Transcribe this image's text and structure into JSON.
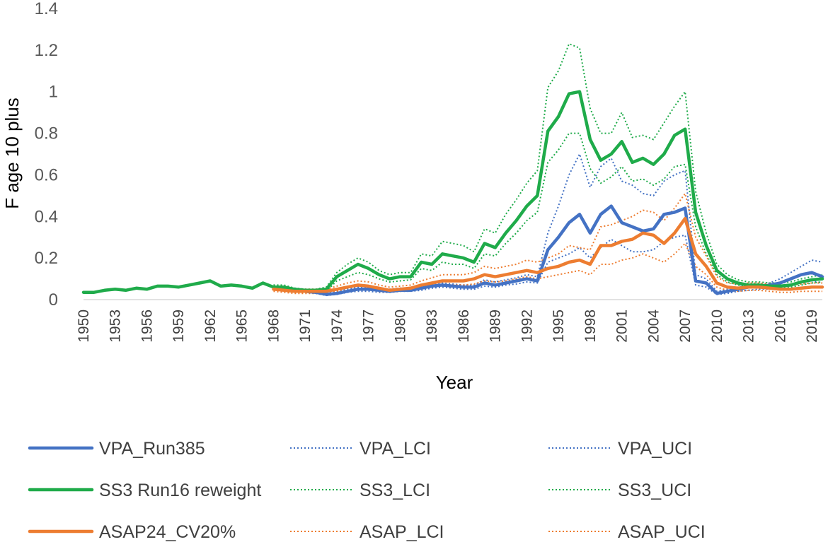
{
  "chart_data": {
    "type": "line",
    "xlabel": "Year",
    "ylabel": "F age 10 plus",
    "ylim": [
      0,
      1.4
    ],
    "yticks": [
      "0",
      "0.2",
      "0.4",
      "0.6",
      "0.8",
      "1",
      "1.2",
      "1.4"
    ],
    "xlim": [
      1950,
      2020
    ],
    "xticks": [
      "1950",
      "1953",
      "1956",
      "1959",
      "1962",
      "1965",
      "1968",
      "1971",
      "1974",
      "1977",
      "1980",
      "1983",
      "1986",
      "1989",
      "1992",
      "1995",
      "1998",
      "2001",
      "2004",
      "2007",
      "2010",
      "2013",
      "2016",
      "2019"
    ],
    "grid": false,
    "legend_position": "bottom",
    "series": [
      {
        "name": "VPA_Run385",
        "color": "#4472C4",
        "style": "solid",
        "x": [
          1968,
          1969,
          1970,
          1971,
          1972,
          1973,
          1974,
          1975,
          1976,
          1977,
          1978,
          1979,
          1980,
          1981,
          1982,
          1983,
          1984,
          1985,
          1986,
          1987,
          1988,
          1989,
          1990,
          1991,
          1992,
          1993,
          1994,
          1995,
          1996,
          1997,
          1998,
          1999,
          2000,
          2001,
          2002,
          2003,
          2004,
          2005,
          2006,
          2007,
          2008,
          2009,
          2010,
          2011,
          2012,
          2013,
          2014,
          2015,
          2016,
          2017,
          2018,
          2019,
          2020
        ],
        "values": [
          0.06,
          0.055,
          0.045,
          0.04,
          0.035,
          0.025,
          0.03,
          0.04,
          0.05,
          0.05,
          0.045,
          0.04,
          0.045,
          0.045,
          0.055,
          0.065,
          0.07,
          0.065,
          0.06,
          0.06,
          0.08,
          0.07,
          0.08,
          0.09,
          0.1,
          0.09,
          0.24,
          0.3,
          0.37,
          0.41,
          0.32,
          0.41,
          0.45,
          0.37,
          0.35,
          0.33,
          0.34,
          0.41,
          0.42,
          0.44,
          0.09,
          0.08,
          0.03,
          0.04,
          0.05,
          0.06,
          0.06,
          0.07,
          0.08,
          0.1,
          0.12,
          0.13,
          0.11
        ]
      },
      {
        "name": "VPA_LCI",
        "color": "#4472C4",
        "style": "dotted",
        "x": [
          1968,
          1969,
          1970,
          1971,
          1972,
          1973,
          1974,
          1975,
          1976,
          1977,
          1978,
          1979,
          1980,
          1981,
          1982,
          1983,
          1984,
          1985,
          1986,
          1987,
          1988,
          1989,
          1990,
          1991,
          1992,
          1993,
          1994,
          1995,
          1996,
          1997,
          1998,
          1999,
          2000,
          2001,
          2002,
          2003,
          2004,
          2005,
          2006,
          2007,
          2008,
          2009,
          2010,
          2011,
          2012,
          2013,
          2014,
          2015,
          2016,
          2017,
          2018,
          2019,
          2020
        ],
        "values": [
          0.05,
          0.045,
          0.04,
          0.035,
          0.03,
          0.02,
          0.025,
          0.035,
          0.04,
          0.04,
          0.035,
          0.035,
          0.04,
          0.04,
          0.045,
          0.055,
          0.06,
          0.055,
          0.05,
          0.05,
          0.065,
          0.06,
          0.07,
          0.075,
          0.085,
          0.08,
          0.18,
          0.2,
          0.22,
          0.25,
          0.2,
          0.25,
          0.29,
          0.26,
          0.23,
          0.23,
          0.24,
          0.28,
          0.3,
          0.31,
          0.07,
          0.06,
          0.025,
          0.03,
          0.04,
          0.045,
          0.05,
          0.05,
          0.06,
          0.07,
          0.08,
          0.09,
          0.08
        ]
      },
      {
        "name": "VPA_UCI",
        "color": "#4472C4",
        "style": "dotted",
        "x": [
          1968,
          1969,
          1970,
          1971,
          1972,
          1973,
          1974,
          1975,
          1976,
          1977,
          1978,
          1979,
          1980,
          1981,
          1982,
          1983,
          1984,
          1985,
          1986,
          1987,
          1988,
          1989,
          1990,
          1991,
          1992,
          1993,
          1994,
          1995,
          1996,
          1997,
          1998,
          1999,
          2000,
          2001,
          2002,
          2003,
          2004,
          2005,
          2006,
          2007,
          2008,
          2009,
          2010,
          2011,
          2012,
          2013,
          2014,
          2015,
          2016,
          2017,
          2018,
          2019,
          2020
        ],
        "values": [
          0.07,
          0.065,
          0.055,
          0.05,
          0.045,
          0.035,
          0.04,
          0.05,
          0.06,
          0.06,
          0.055,
          0.05,
          0.055,
          0.055,
          0.065,
          0.075,
          0.08,
          0.075,
          0.07,
          0.07,
          0.095,
          0.085,
          0.095,
          0.105,
          0.12,
          0.11,
          0.32,
          0.45,
          0.6,
          0.7,
          0.54,
          0.64,
          0.68,
          0.57,
          0.55,
          0.51,
          0.5,
          0.57,
          0.6,
          0.62,
          0.12,
          0.1,
          0.04,
          0.05,
          0.06,
          0.07,
          0.075,
          0.08,
          0.1,
          0.13,
          0.16,
          0.19,
          0.18
        ]
      },
      {
        "name": "SS3 Run16 reweight",
        "color": "#1FAB4A",
        "style": "solid",
        "x": [
          1950,
          1951,
          1952,
          1953,
          1954,
          1955,
          1956,
          1957,
          1958,
          1959,
          1960,
          1961,
          1962,
          1963,
          1964,
          1965,
          1966,
          1967,
          1968,
          1969,
          1970,
          1971,
          1972,
          1973,
          1974,
          1975,
          1976,
          1977,
          1978,
          1979,
          1980,
          1981,
          1982,
          1983,
          1984,
          1985,
          1986,
          1987,
          1988,
          1989,
          1990,
          1991,
          1992,
          1993,
          1994,
          1995,
          1996,
          1997,
          1998,
          1999,
          2000,
          2001,
          2002,
          2003,
          2004,
          2005,
          2006,
          2007,
          2008,
          2009,
          2010,
          2011,
          2012,
          2013,
          2014,
          2015,
          2016,
          2017,
          2018,
          2019,
          2020
        ],
        "values": [
          0.035,
          0.035,
          0.045,
          0.05,
          0.045,
          0.055,
          0.05,
          0.065,
          0.065,
          0.06,
          0.07,
          0.08,
          0.09,
          0.065,
          0.07,
          0.065,
          0.055,
          0.08,
          0.06,
          0.06,
          0.05,
          0.045,
          0.045,
          0.05,
          0.11,
          0.14,
          0.17,
          0.15,
          0.12,
          0.1,
          0.11,
          0.11,
          0.18,
          0.17,
          0.22,
          0.21,
          0.2,
          0.18,
          0.27,
          0.25,
          0.32,
          0.38,
          0.45,
          0.5,
          0.81,
          0.88,
          0.99,
          1.0,
          0.77,
          0.67,
          0.7,
          0.76,
          0.66,
          0.68,
          0.65,
          0.7,
          0.79,
          0.82,
          0.42,
          0.26,
          0.14,
          0.1,
          0.08,
          0.07,
          0.07,
          0.065,
          0.065,
          0.07,
          0.085,
          0.095,
          0.1
        ]
      },
      {
        "name": "SS3_LCI",
        "color": "#1FAB4A",
        "style": "dotted",
        "x": [
          1968,
          1969,
          1970,
          1971,
          1972,
          1973,
          1974,
          1975,
          1976,
          1977,
          1978,
          1979,
          1980,
          1981,
          1982,
          1983,
          1984,
          1985,
          1986,
          1987,
          1988,
          1989,
          1990,
          1991,
          1992,
          1993,
          1994,
          1995,
          1996,
          1997,
          1998,
          1999,
          2000,
          2001,
          2002,
          2003,
          2004,
          2005,
          2006,
          2007,
          2008,
          2009,
          2010,
          2011,
          2012,
          2013,
          2014,
          2015,
          2016,
          2017,
          2018,
          2019,
          2020
        ],
        "values": [
          0.07,
          0.065,
          0.045,
          0.04,
          0.04,
          0.04,
          0.09,
          0.11,
          0.13,
          0.12,
          0.1,
          0.085,
          0.09,
          0.095,
          0.15,
          0.14,
          0.18,
          0.17,
          0.17,
          0.15,
          0.22,
          0.21,
          0.27,
          0.32,
          0.38,
          0.42,
          0.66,
          0.72,
          0.8,
          0.8,
          0.63,
          0.56,
          0.59,
          0.64,
          0.57,
          0.58,
          0.55,
          0.58,
          0.64,
          0.65,
          0.35,
          0.22,
          0.12,
          0.085,
          0.07,
          0.06,
          0.06,
          0.055,
          0.055,
          0.06,
          0.07,
          0.08,
          0.085
        ]
      },
      {
        "name": "SS3_UCI",
        "color": "#1FAB4A",
        "style": "dotted",
        "x": [
          1968,
          1969,
          1970,
          1971,
          1972,
          1973,
          1974,
          1975,
          1976,
          1977,
          1978,
          1979,
          1980,
          1981,
          1982,
          1983,
          1984,
          1985,
          1986,
          1987,
          1988,
          1989,
          1990,
          1991,
          1992,
          1993,
          1994,
          1995,
          1996,
          1997,
          1998,
          1999,
          2000,
          2001,
          2002,
          2003,
          2004,
          2005,
          2006,
          2007,
          2008,
          2009,
          2010,
          2011,
          2012,
          2013,
          2014,
          2015,
          2016,
          2017,
          2018,
          2019,
          2020
        ],
        "values": [
          0.07,
          0.07,
          0.055,
          0.05,
          0.05,
          0.06,
          0.13,
          0.17,
          0.2,
          0.18,
          0.14,
          0.12,
          0.13,
          0.13,
          0.22,
          0.21,
          0.28,
          0.27,
          0.26,
          0.23,
          0.34,
          0.32,
          0.41,
          0.48,
          0.56,
          0.62,
          1.02,
          1.1,
          1.23,
          1.21,
          0.92,
          0.8,
          0.8,
          0.9,
          0.78,
          0.79,
          0.77,
          0.85,
          0.93,
          1.0,
          0.52,
          0.32,
          0.17,
          0.12,
          0.095,
          0.085,
          0.085,
          0.08,
          0.08,
          0.085,
          0.1,
          0.11,
          0.12
        ]
      },
      {
        "name": "ASAP24_CV20%",
        "color": "#ED7D31",
        "style": "solid",
        "x": [
          1968,
          1969,
          1970,
          1971,
          1972,
          1973,
          1974,
          1975,
          1976,
          1977,
          1978,
          1979,
          1980,
          1981,
          1982,
          1983,
          1984,
          1985,
          1986,
          1987,
          1988,
          1989,
          1990,
          1991,
          1992,
          1993,
          1994,
          1995,
          1996,
          1997,
          1998,
          1999,
          2000,
          2001,
          2002,
          2003,
          2004,
          2005,
          2006,
          2007,
          2008,
          2009,
          2010,
          2011,
          2012,
          2013,
          2014,
          2015,
          2016,
          2017,
          2018,
          2019,
          2020
        ],
        "values": [
          0.05,
          0.045,
          0.04,
          0.04,
          0.04,
          0.04,
          0.05,
          0.06,
          0.07,
          0.065,
          0.055,
          0.045,
          0.05,
          0.055,
          0.07,
          0.08,
          0.09,
          0.09,
          0.09,
          0.1,
          0.12,
          0.11,
          0.12,
          0.13,
          0.14,
          0.13,
          0.15,
          0.16,
          0.18,
          0.19,
          0.17,
          0.26,
          0.26,
          0.28,
          0.29,
          0.32,
          0.31,
          0.27,
          0.32,
          0.39,
          0.22,
          0.16,
          0.08,
          0.06,
          0.055,
          0.06,
          0.06,
          0.055,
          0.05,
          0.05,
          0.055,
          0.06,
          0.06
        ]
      },
      {
        "name": "ASAP_LCI",
        "color": "#ED7D31",
        "style": "dotted",
        "x": [
          1968,
          1969,
          1970,
          1971,
          1972,
          1973,
          1974,
          1975,
          1976,
          1977,
          1978,
          1979,
          1980,
          1981,
          1982,
          1983,
          1984,
          1985,
          1986,
          1987,
          1988,
          1989,
          1990,
          1991,
          1992,
          1993,
          1994,
          1995,
          1996,
          1997,
          1998,
          1999,
          2000,
          2001,
          2002,
          2003,
          2004,
          2005,
          2006,
          2007,
          2008,
          2009,
          2010,
          2011,
          2012,
          2013,
          2014,
          2015,
          2016,
          2017,
          2018,
          2019,
          2020
        ],
        "values": [
          0.04,
          0.035,
          0.03,
          0.03,
          0.03,
          0.03,
          0.04,
          0.045,
          0.05,
          0.05,
          0.04,
          0.035,
          0.04,
          0.045,
          0.055,
          0.065,
          0.07,
          0.07,
          0.07,
          0.075,
          0.09,
          0.085,
          0.09,
          0.1,
          0.11,
          0.1,
          0.11,
          0.12,
          0.13,
          0.14,
          0.12,
          0.17,
          0.17,
          0.19,
          0.2,
          0.22,
          0.2,
          0.18,
          0.22,
          0.27,
          0.16,
          0.12,
          0.06,
          0.045,
          0.04,
          0.045,
          0.045,
          0.04,
          0.035,
          0.035,
          0.04,
          0.04,
          0.04
        ]
      },
      {
        "name": "ASAP_UCI",
        "color": "#ED7D31",
        "style": "dotted",
        "x": [
          1968,
          1969,
          1970,
          1971,
          1972,
          1973,
          1974,
          1975,
          1976,
          1977,
          1978,
          1979,
          1980,
          1981,
          1982,
          1983,
          1984,
          1985,
          1986,
          1987,
          1988,
          1989,
          1990,
          1991,
          1992,
          1993,
          1994,
          1995,
          1996,
          1997,
          1998,
          1999,
          2000,
          2001,
          2002,
          2003,
          2004,
          2005,
          2006,
          2007,
          2008,
          2009,
          2010,
          2011,
          2012,
          2013,
          2014,
          2015,
          2016,
          2017,
          2018,
          2019,
          2020
        ],
        "values": [
          0.065,
          0.06,
          0.05,
          0.05,
          0.05,
          0.05,
          0.065,
          0.08,
          0.09,
          0.085,
          0.07,
          0.06,
          0.065,
          0.07,
          0.09,
          0.105,
          0.12,
          0.12,
          0.12,
          0.13,
          0.16,
          0.15,
          0.16,
          0.17,
          0.19,
          0.18,
          0.2,
          0.22,
          0.26,
          0.25,
          0.24,
          0.35,
          0.36,
          0.38,
          0.4,
          0.43,
          0.42,
          0.38,
          0.44,
          0.51,
          0.3,
          0.21,
          0.11,
          0.08,
          0.075,
          0.08,
          0.08,
          0.075,
          0.07,
          0.07,
          0.075,
          0.08,
          0.08
        ]
      }
    ]
  }
}
